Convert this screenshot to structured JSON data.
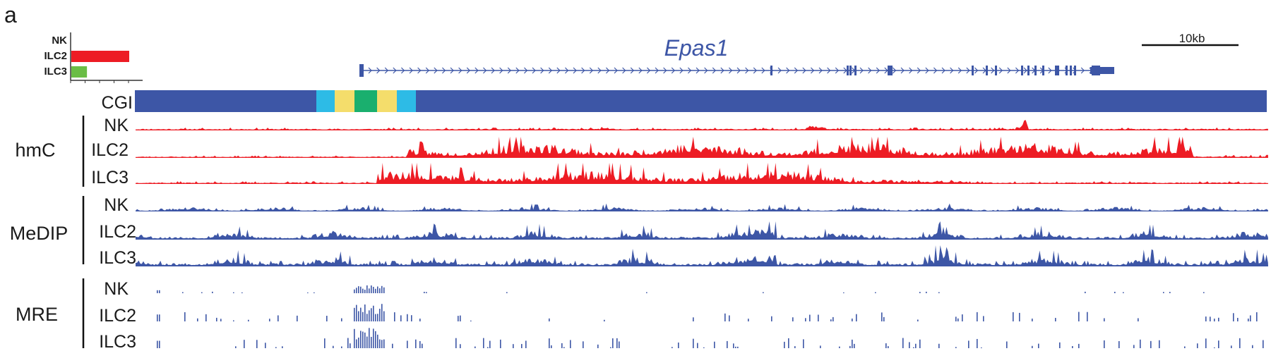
{
  "panel_label": "a",
  "gene": {
    "name": "Epas1",
    "strand": "+"
  },
  "scale_bar": {
    "label": "10kb",
    "length_kb": 10
  },
  "expression": {
    "categories": [
      "NK",
      "ILC2",
      "ILC3"
    ],
    "values": [
      0,
      1.0,
      0.27
    ],
    "colors": [
      "#1a1a1a",
      "#ed1c24",
      "#6abd45"
    ]
  },
  "cgi": {
    "label": "CGI",
    "block_colors": [
      "#2dbbe6",
      "#f4dd6b",
      "#1aaf6e",
      "#f4dd6b",
      "#2dbbe6"
    ],
    "background_color": "#3d56a6"
  },
  "groups": [
    {
      "label": "hmC",
      "color": "#ed1c24",
      "tracks": [
        "NK",
        "ILC2",
        "ILC3"
      ]
    },
    {
      "label": "MeDIP",
      "color": "#3d56a6",
      "tracks": [
        "NK",
        "ILC2",
        "ILC3"
      ]
    },
    {
      "label": "MRE",
      "color": "#3d56a6",
      "tracks": [
        "NK",
        "ILC2",
        "ILC3"
      ]
    }
  ]
}
